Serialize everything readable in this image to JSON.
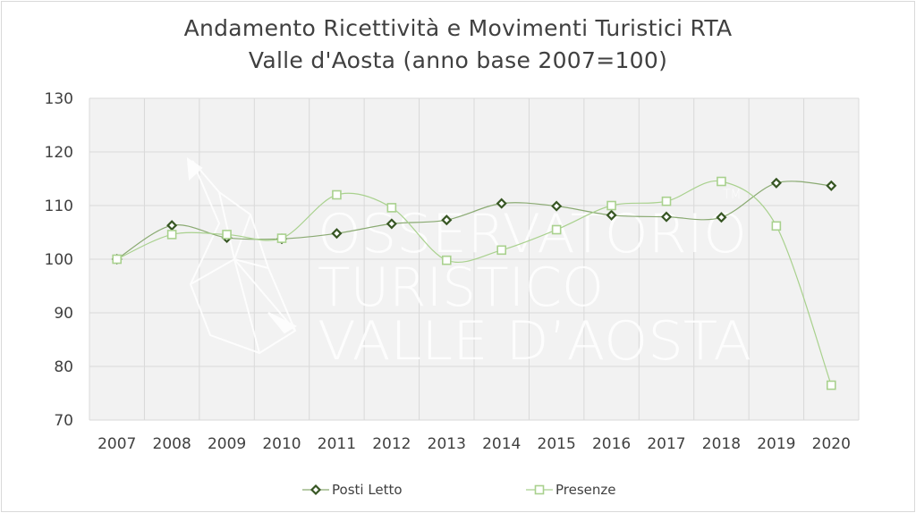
{
  "chart_data": {
    "type": "line",
    "title_line1": "Andamento Ricettività e Movimenti Turistici RTA",
    "title_line2": "Valle d'Aosta (anno base 2007=100)",
    "categories": [
      "2007",
      "2008",
      "2009",
      "2010",
      "2011",
      "2012",
      "2013",
      "2014",
      "2015",
      "2016",
      "2017",
      "2018",
      "2019",
      "2020"
    ],
    "ylim": [
      70,
      130
    ],
    "yticks": [
      70,
      80,
      90,
      100,
      110,
      120,
      130
    ],
    "grid": true,
    "legend_position": "bottom",
    "series": [
      {
        "name": "Posti Letto",
        "marker": "diamond",
        "color": "#375623",
        "values": [
          100,
          106.3,
          104.0,
          103.8,
          104.8,
          106.6,
          107.3,
          110.4,
          109.9,
          108.2,
          107.9,
          107.8,
          114.2,
          113.7
        ]
      },
      {
        "name": "Presenze",
        "marker": "square",
        "color": "#a9d18e",
        "values": [
          100,
          104.6,
          104.6,
          103.9,
          112.0,
          109.6,
          99.8,
          101.7,
          105.5,
          110.0,
          110.8,
          114.5,
          106.2,
          76.5
        ]
      }
    ]
  },
  "watermark": {
    "line1": "OSSERVATORIO",
    "line2": "TURISTICO",
    "line3": "VALLE D’AOSTA",
    "tm": "TM"
  }
}
